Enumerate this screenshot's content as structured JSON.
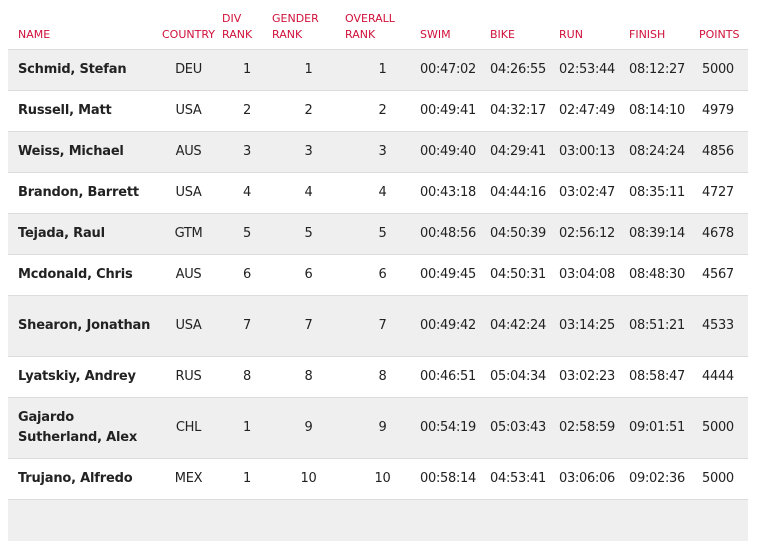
{
  "headers": {
    "name": "NAME",
    "country": "COUNTRY",
    "div_rank": [
      "DIV",
      "RANK"
    ],
    "gender_rank": [
      "GENDER",
      "RANK"
    ],
    "overall_rank": [
      "OVERALL",
      "RANK"
    ],
    "swim": "SWIM",
    "bike": "BIKE",
    "run": "RUN",
    "finish": "FINISH",
    "points": "POINTS"
  },
  "colors": {
    "header_text": "#d0103a",
    "row_stripe": "#efefef",
    "row_border": "#dcdcdc"
  },
  "rows": [
    {
      "name": "Schmid, Stefan",
      "country": "DEU",
      "div_rank": "1",
      "gender_rank": "1",
      "overall_rank": "1",
      "swim": "00:47:02",
      "bike": "04:26:55",
      "run": "02:53:44",
      "finish": "08:12:27",
      "points": "5000"
    },
    {
      "name": "Russell, Matt",
      "country": "USA",
      "div_rank": "2",
      "gender_rank": "2",
      "overall_rank": "2",
      "swim": "00:49:41",
      "bike": "04:32:17",
      "run": "02:47:49",
      "finish": "08:14:10",
      "points": "4979"
    },
    {
      "name": "Weiss, Michael",
      "country": "AUS",
      "div_rank": "3",
      "gender_rank": "3",
      "overall_rank": "3",
      "swim": "00:49:40",
      "bike": "04:29:41",
      "run": "03:00:13",
      "finish": "08:24:24",
      "points": "4856"
    },
    {
      "name": "Brandon, Barrett",
      "country": "USA",
      "div_rank": "4",
      "gender_rank": "4",
      "overall_rank": "4",
      "swim": "00:43:18",
      "bike": "04:44:16",
      "run": "03:02:47",
      "finish": "08:35:11",
      "points": "4727"
    },
    {
      "name": "Tejada, Raul",
      "country": "GTM",
      "div_rank": "5",
      "gender_rank": "5",
      "overall_rank": "5",
      "swim": "00:48:56",
      "bike": "04:50:39",
      "run": "02:56:12",
      "finish": "08:39:14",
      "points": "4678"
    },
    {
      "name": "Mcdonald, Chris",
      "country": "AUS",
      "div_rank": "6",
      "gender_rank": "6",
      "overall_rank": "6",
      "swim": "00:49:45",
      "bike": "04:50:31",
      "run": "03:04:08",
      "finish": "08:48:30",
      "points": "4567"
    },
    {
      "name": "Shearon, Jonathan",
      "country": "USA",
      "div_rank": "7",
      "gender_rank": "7",
      "overall_rank": "7",
      "swim": "00:49:42",
      "bike": "04:42:24",
      "run": "03:14:25",
      "finish": "08:51:21",
      "points": "4533"
    },
    {
      "name": "Lyatskiy, Andrey",
      "country": "RUS",
      "div_rank": "8",
      "gender_rank": "8",
      "overall_rank": "8",
      "swim": "00:46:51",
      "bike": "05:04:34",
      "run": "03:02:23",
      "finish": "08:58:47",
      "points": "4444"
    },
    {
      "name": "Gajardo Sutherland, Alex",
      "country": "CHL",
      "div_rank": "1",
      "gender_rank": "9",
      "overall_rank": "9",
      "swim": "00:54:19",
      "bike": "05:03:43",
      "run": "02:58:59",
      "finish": "09:01:51",
      "points": "5000"
    },
    {
      "name": "Trujano, Alfredo",
      "country": "MEX",
      "div_rank": "1",
      "gender_rank": "10",
      "overall_rank": "10",
      "swim": "00:58:14",
      "bike": "04:53:41",
      "run": "03:06:06",
      "finish": "09:02:36",
      "points": "5000"
    }
  ]
}
